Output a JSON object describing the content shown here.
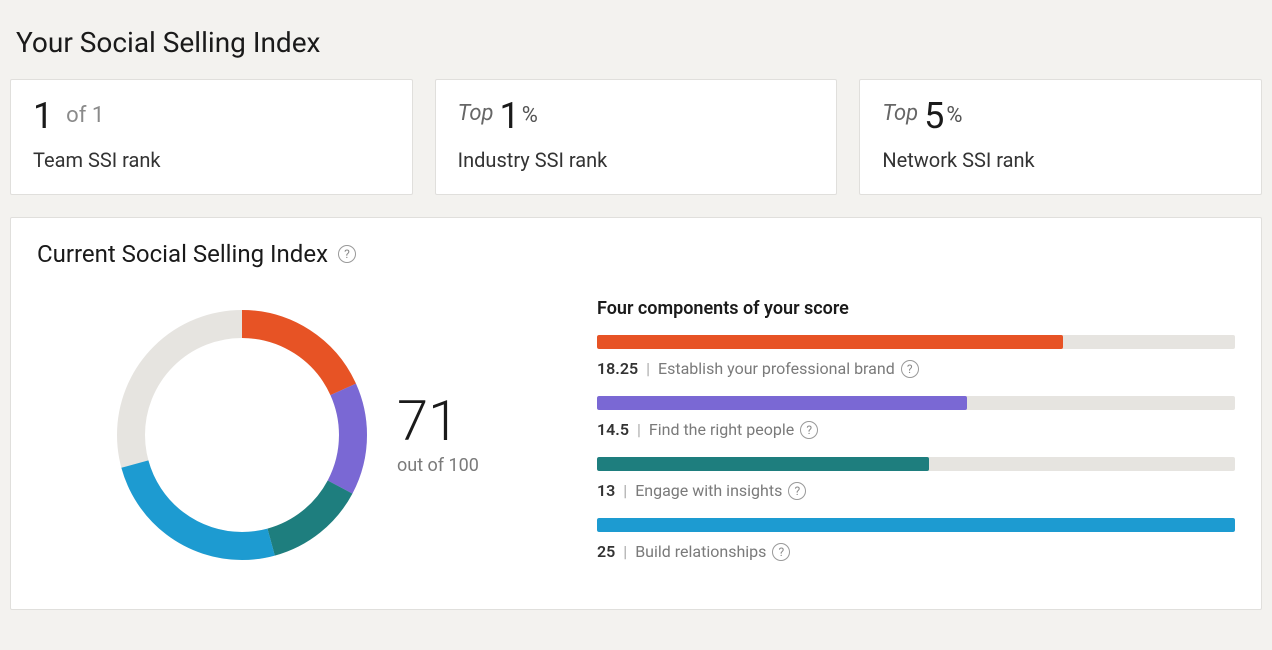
{
  "page": {
    "title": "Your Social Selling Index",
    "background_color": "#f3f2ef",
    "card_border_color": "#e0dfdc",
    "card_background": "#ffffff"
  },
  "rank_cards": {
    "team": {
      "value": "1",
      "suffix": "of 1",
      "label": "Team SSI rank"
    },
    "industry": {
      "prefix": "Top",
      "value": "1",
      "suffix": "%",
      "label": "Industry SSI rank"
    },
    "network": {
      "prefix": "Top",
      "value": "5",
      "suffix": "%",
      "label": "Network SSI rank"
    }
  },
  "current_index": {
    "title": "Current Social Selling Index",
    "score": "71",
    "score_sub": "out of 100",
    "max": 100,
    "donut": {
      "type": "donut",
      "size": 250,
      "stroke_width": 28,
      "track_color": "#e6e4e0",
      "segments": [
        {
          "value": 18.25,
          "color": "#e75325"
        },
        {
          "value": 14.5,
          "color": "#7a68d4"
        },
        {
          "value": 13,
          "color": "#1e7e7e"
        },
        {
          "value": 25,
          "color": "#1d9bd1"
        }
      ]
    }
  },
  "components": {
    "title": "Four components of your score",
    "max_per_component": 25,
    "track_color": "#e6e4e0",
    "items": [
      {
        "value": "18.25",
        "num": 18.25,
        "label": "Establish your professional brand",
        "color": "#e75325"
      },
      {
        "value": "14.5",
        "num": 14.5,
        "label": "Find the right people",
        "color": "#7a68d4"
      },
      {
        "value": "13",
        "num": 13,
        "label": "Engage with insights",
        "color": "#1e7e7e"
      },
      {
        "value": "25",
        "num": 25,
        "label": "Build relationships",
        "color": "#1d9bd1"
      }
    ]
  }
}
